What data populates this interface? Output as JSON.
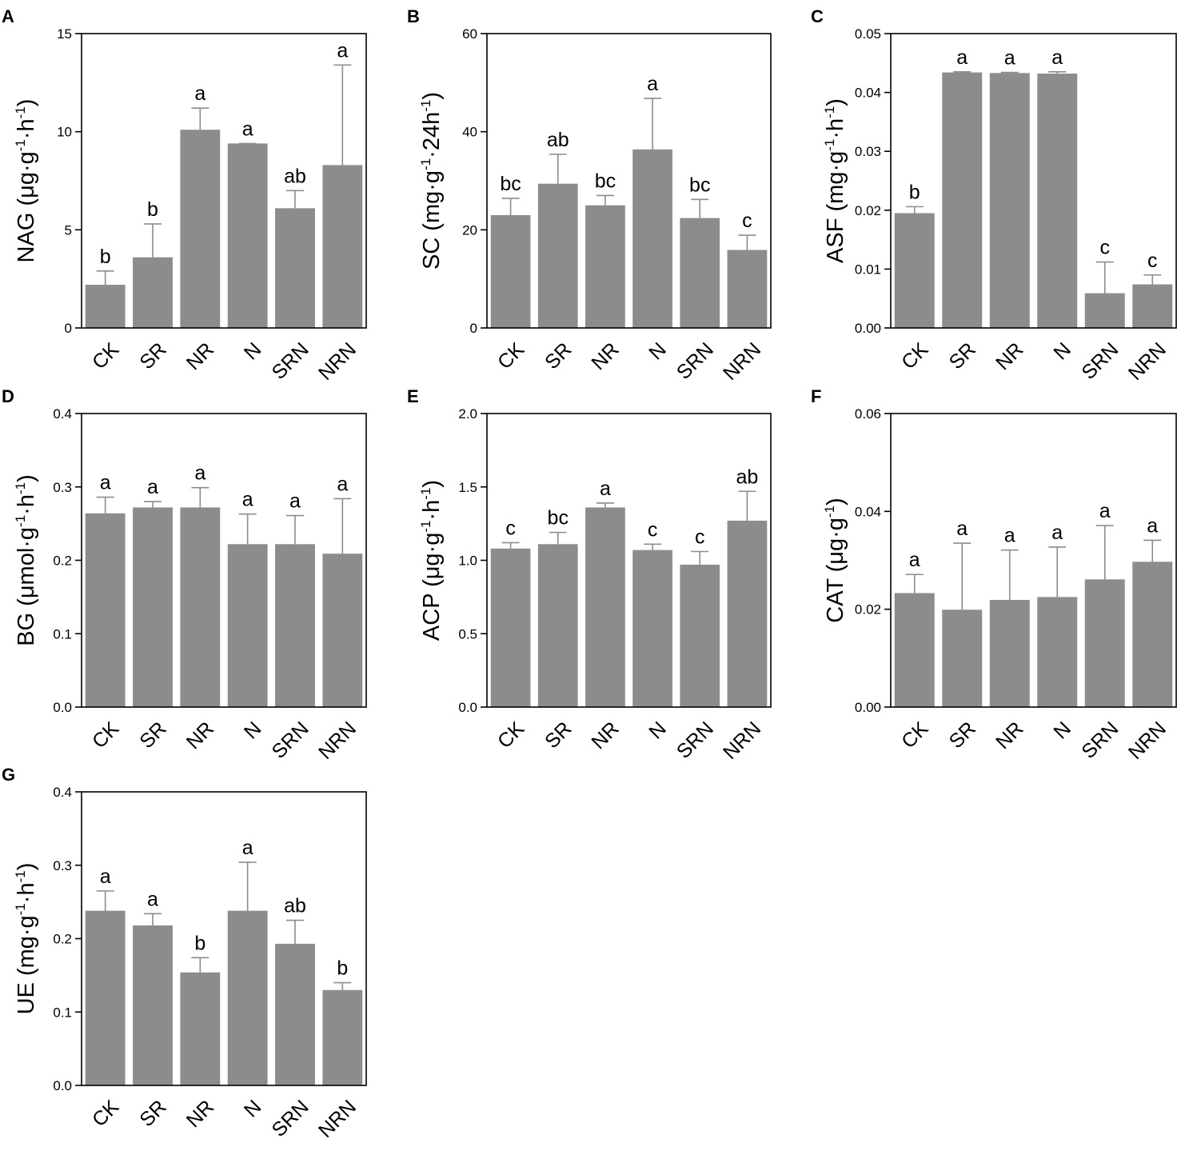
{
  "figure": {
    "background": "#ffffff",
    "bar_color": "#8c8c8c",
    "axis_color": "#000000",
    "error_color": "#8c8c8c"
  },
  "chart_data": [
    {
      "panel": "A",
      "type": "bar",
      "ylabel": "NAG (μg·g⁻¹·h⁻¹)",
      "categories": [
        "CK",
        "SR",
        "NR",
        "N",
        "SRN",
        "NRN"
      ],
      "values": [
        2.2,
        3.6,
        10.1,
        9.4,
        6.1,
        8.3
      ],
      "errors": [
        0.7,
        1.7,
        1.1,
        0.0,
        0.9,
        5.1
      ],
      "letters": [
        "b",
        "b",
        "a",
        "a",
        "ab",
        "a"
      ],
      "ylim": [
        0,
        15
      ],
      "yticks": [
        0,
        5,
        10,
        15
      ],
      "ytick_labels": [
        "0",
        "5",
        "10",
        "15"
      ]
    },
    {
      "panel": "B",
      "type": "bar",
      "ylabel": "SC (mg·g⁻¹·24h⁻¹)",
      "categories": [
        "CK",
        "SR",
        "NR",
        "N",
        "SRN",
        "NRN"
      ],
      "values": [
        23.0,
        29.4,
        25.0,
        36.4,
        22.4,
        15.9
      ],
      "errors": [
        3.4,
        6.0,
        2.0,
        10.4,
        3.8,
        3.0
      ],
      "letters": [
        "bc",
        "ab",
        "bc",
        "a",
        "bc",
        "c"
      ],
      "ylim": [
        0,
        60
      ],
      "yticks": [
        0,
        20,
        40,
        60
      ],
      "ytick_labels": [
        "0",
        "20",
        "40",
        "60"
      ]
    },
    {
      "panel": "C",
      "type": "bar",
      "ylabel": "ASF (mg·g⁻¹·h⁻¹)",
      "categories": [
        "CK",
        "SR",
        "NR",
        "N",
        "SRN",
        "NRN"
      ],
      "values": [
        0.0195,
        0.0434,
        0.0433,
        0.0432,
        0.0059,
        0.0074
      ],
      "errors": [
        0.0011,
        0.0001,
        0.0001,
        0.0003,
        0.0053,
        0.0016
      ],
      "letters": [
        "b",
        "a",
        "a",
        "a",
        "c",
        "c"
      ],
      "ylim": [
        0,
        0.05
      ],
      "yticks": [
        0,
        0.01,
        0.02,
        0.03,
        0.04,
        0.05
      ],
      "ytick_labels": [
        "0.00",
        "0.01",
        "0.02",
        "0.03",
        "0.04",
        "0.05"
      ]
    },
    {
      "panel": "D",
      "type": "bar",
      "ylabel": "BG (μmol·g⁻¹·h⁻¹)",
      "categories": [
        "CK",
        "SR",
        "NR",
        "N",
        "SRN",
        "NRN"
      ],
      "values": [
        0.264,
        0.272,
        0.272,
        0.222,
        0.222,
        0.209
      ],
      "errors": [
        0.022,
        0.008,
        0.027,
        0.041,
        0.039,
        0.075
      ],
      "letters": [
        "a",
        "a",
        "a",
        "a",
        "a",
        "a"
      ],
      "ylim": [
        0,
        0.4
      ],
      "yticks": [
        0,
        0.1,
        0.2,
        0.3,
        0.4
      ],
      "ytick_labels": [
        "0.0",
        "0.1",
        "0.2",
        "0.3",
        "0.4"
      ]
    },
    {
      "panel": "E",
      "type": "bar",
      "ylabel": "ACP (μg·g⁻¹·h⁻¹)",
      "categories": [
        "CK",
        "SR",
        "NR",
        "N",
        "SRN",
        "NRN"
      ],
      "values": [
        1.08,
        1.11,
        1.36,
        1.07,
        0.97,
        1.27
      ],
      "errors": [
        0.04,
        0.08,
        0.03,
        0.04,
        0.09,
        0.2
      ],
      "letters": [
        "c",
        "bc",
        "a",
        "c",
        "c",
        "ab"
      ],
      "ylim": [
        0,
        2.0
      ],
      "yticks": [
        0,
        0.5,
        1.0,
        1.5,
        2.0
      ],
      "ytick_labels": [
        "0.0",
        "0.5",
        "1.0",
        "1.5",
        "2.0"
      ]
    },
    {
      "panel": "F",
      "type": "bar",
      "ylabel": "CAT (μg·g⁻¹)",
      "categories": [
        "CK",
        "SR",
        "NR",
        "N",
        "SRN",
        "NRN"
      ],
      "values": [
        0.0233,
        0.0199,
        0.0219,
        0.0225,
        0.0261,
        0.0297
      ],
      "errors": [
        0.0038,
        0.0136,
        0.0102,
        0.0102,
        0.011,
        0.0044
      ],
      "letters": [
        "a",
        "a",
        "a",
        "a",
        "a",
        "a"
      ],
      "ylim": [
        0,
        0.06
      ],
      "yticks": [
        0,
        0.02,
        0.04,
        0.06
      ],
      "ytick_labels": [
        "0.00",
        "0.02",
        "0.04",
        "0.06"
      ]
    },
    {
      "panel": "G",
      "type": "bar",
      "ylabel": "UE (mg·g⁻¹·h⁻¹)",
      "categories": [
        "CK",
        "SR",
        "NR",
        "N",
        "SRN",
        "NRN"
      ],
      "values": [
        0.238,
        0.218,
        0.154,
        0.238,
        0.193,
        0.13
      ],
      "errors": [
        0.027,
        0.016,
        0.02,
        0.066,
        0.032,
        0.01
      ],
      "letters": [
        "a",
        "a",
        "b",
        "a",
        "ab",
        "b"
      ],
      "ylim": [
        0,
        0.4
      ],
      "yticks": [
        0,
        0.1,
        0.2,
        0.3,
        0.4
      ],
      "ytick_labels": [
        "0.0",
        "0.1",
        "0.2",
        "0.3",
        "0.4"
      ]
    }
  ]
}
